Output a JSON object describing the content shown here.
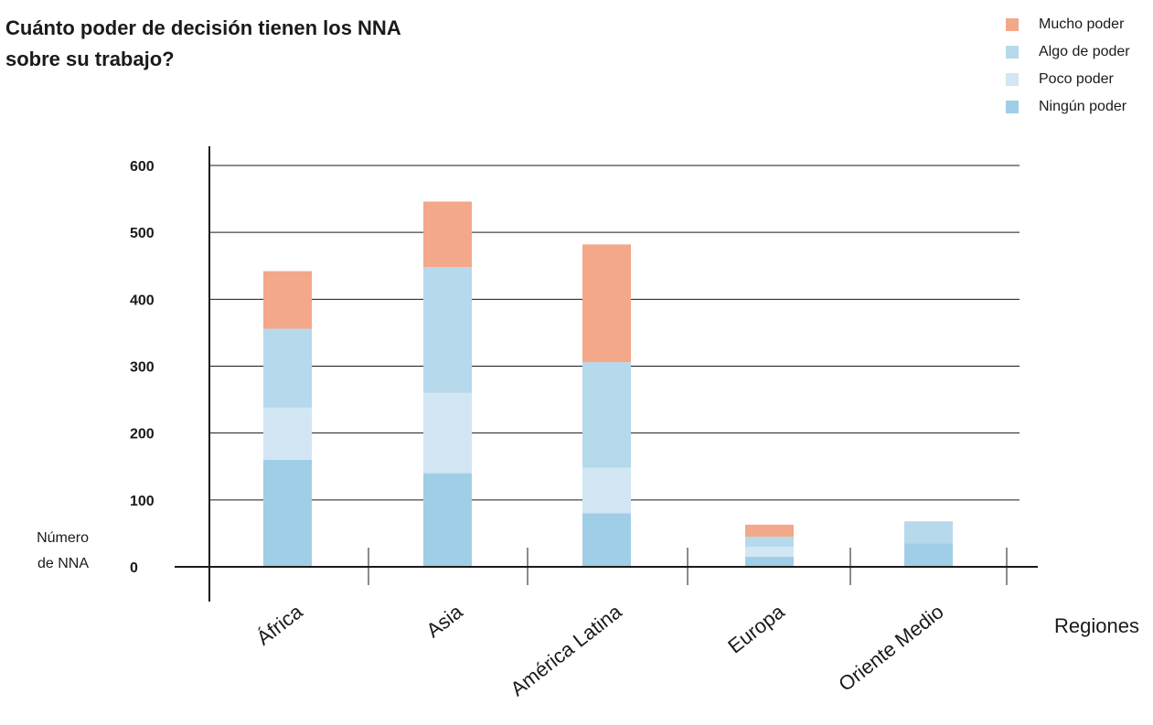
{
  "title": [
    "Cuánto poder de decisión tienen los NNA",
    "sobre su trabajo?"
  ],
  "legend": [
    {
      "label": "Mucho poder",
      "color": "#f2a889"
    },
    {
      "label": "Algo de poder",
      "color": "#b6d9ec"
    },
    {
      "label": "Poco poder",
      "color": "#d2e6f3"
    },
    {
      "label": "Ningún poder",
      "color": "#a0cee6"
    }
  ],
  "chart_data": {
    "type": "bar",
    "stacked": true,
    "categories": [
      "África",
      "Asia",
      "América Latina",
      "Europa",
      "Oriente Medio"
    ],
    "series": [
      {
        "name": "Ningún poder",
        "color": "#a0cee6",
        "values": [
          160,
          140,
          80,
          15,
          35
        ]
      },
      {
        "name": "Poco poder",
        "color": "#d2e6f3",
        "values": [
          78,
          120,
          68,
          15,
          0
        ]
      },
      {
        "name": "Algo de poder",
        "color": "#b6d9ec",
        "values": [
          118,
          188,
          158,
          15,
          33
        ]
      },
      {
        "name": "Mucho poder",
        "color": "#f2a889",
        "values": [
          86,
          98,
          176,
          18,
          0
        ]
      }
    ],
    "ylim": [
      0,
      600
    ],
    "yticks": [
      0,
      100,
      200,
      300,
      400,
      500,
      600
    ],
    "ylabel": [
      "Número",
      "de NNA"
    ],
    "xlabel": "Regiones",
    "grid": true,
    "legend_position": "top-right"
  }
}
